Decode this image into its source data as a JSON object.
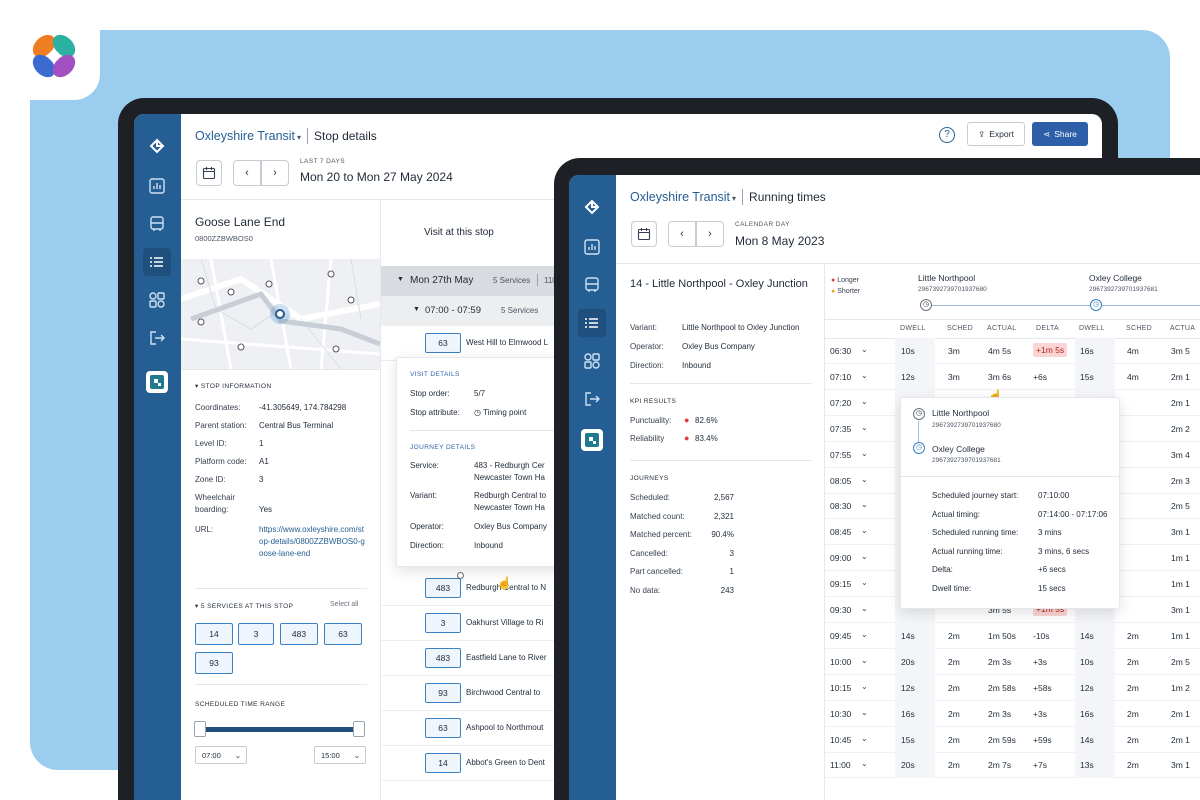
{
  "screen1": {
    "brand": "Oxleyshire Transit",
    "page_title": "Stop details",
    "export_label": "Export",
    "share_label": "Share",
    "date_caption": "LAST 7 DAYS",
    "date_range": "Mon 20 to Mon 27 May 2024",
    "stop_name": "Goose Lane End",
    "stop_code": "0800ZZBWBOS0",
    "stop_info_title": "STOP INFORMATION",
    "info": [
      {
        "k": "Coordinates:",
        "v": "-41.305649, 174.784298"
      },
      {
        "k": "Parent station:",
        "v": "Central Bus Terminal"
      },
      {
        "k": "Level ID:",
        "v": "1"
      },
      {
        "k": "Platform code:",
        "v": "A1"
      },
      {
        "k": "Zone ID:",
        "v": "3"
      },
      {
        "k": "Wheelchair boarding:",
        "v": "Yes"
      },
      {
        "k": "URL:",
        "v": "https://www.oxleyshire.com/stop-details/0800ZZBWBOS0-goose-lane-end"
      }
    ],
    "services_title": "5 SERVICES AT THIS STOP",
    "select_all": "Select all",
    "services": [
      "14",
      "3",
      "483",
      "63",
      "93"
    ],
    "time_range_title": "SCHEDULED TIME RANGE",
    "time_from": "07:00",
    "time_to": "15:00",
    "visit_tab": "Visit at this stop",
    "day_group": "Mon 27th May",
    "day_services": "5 Services",
    "day_extra": "110",
    "hour_group": "07:00 - 07:59",
    "hour_services": "5 Services",
    "journeys": [
      {
        "num": "63",
        "route": "West Hill to Elmwood L"
      },
      {
        "num": "483",
        "route": "Redburgh Central to N"
      },
      {
        "num": "3",
        "route": "Oakhurst Village to Ri"
      },
      {
        "num": "483",
        "route": "Eastfield Lane to River"
      },
      {
        "num": "93",
        "route": "Birchwood Central to"
      },
      {
        "num": "63",
        "route": "Ashpool to Northmout"
      },
      {
        "num": "14",
        "route": "Abbot's Green to Dent"
      }
    ],
    "popup": {
      "visit_title": "VISIT DETAILS",
      "stop_order_k": "Stop order:",
      "stop_order_v": "5/7",
      "stop_attr_k": "Stop attribute:",
      "stop_attr_v": "Timing point",
      "journey_title": "JOURNEY DETAILS",
      "service_k": "Service:",
      "service_v1": "483 - Redburgh Cer",
      "service_v2": "Newcaster Town Ha",
      "variant_k": "Variant:",
      "variant_v1": "Redburgh Central to",
      "variant_v2": "Newcaster Town Ha",
      "operator_k": "Operator:",
      "operator_v": "Oxley Bus Company",
      "direction_k": "Direction:",
      "direction_v": "Inbound"
    }
  },
  "screen2": {
    "brand": "Oxleyshire Transit",
    "page_title": "Running times",
    "date_caption": "CALENDAR DAY",
    "date": "Mon 8 May 2023",
    "route_title": "14 - Little Northpool - Oxley Junction",
    "meta": [
      {
        "k": "Variant:",
        "v": "Little Northpool to Oxley Junction"
      },
      {
        "k": "Operator:",
        "v": "Oxley Bus Company"
      },
      {
        "k": "Direction:",
        "v": "Inbound"
      }
    ],
    "kpi_title": "KPI RESULTS",
    "kpis": [
      {
        "k": "Punctuality:",
        "v": "82.6%"
      },
      {
        "k": "Reliability",
        "v": "83.4%"
      }
    ],
    "journeys_title": "JOURNEYS",
    "journey_stats": [
      {
        "k": "Scheduled:",
        "v": "2,567"
      },
      {
        "k": "Matched count:",
        "v": "2,321"
      },
      {
        "k": "Matched percent:",
        "v": "90.4%"
      },
      {
        "k": "Cancelled:",
        "v": "3"
      },
      {
        "k": "Part cancelled:",
        "v": "1"
      },
      {
        "k": "No data:",
        "v": "243"
      }
    ],
    "legend_longer": "Longer",
    "legend_shorter": "Shorter",
    "stop_a_name": "Little Northpool",
    "stop_a_code": "2967392739701937680",
    "stop_b_name": "Oxley College",
    "stop_b_code": "2967392739701937681",
    "columns": [
      "DWELL",
      "SCHED",
      "ACTUAL",
      "DELTA",
      "DWELL",
      "SCHED",
      "ACTUA"
    ],
    "rows": [
      {
        "time": "06:30",
        "dwell": "10s",
        "sched": "3m",
        "actual": "4m 5s",
        "delta": "+1m 5s",
        "dwell2": "16s",
        "sched2": "4m",
        "actual2": "3m 5"
      },
      {
        "time": "07:10",
        "dwell": "12s",
        "sched": "3m",
        "actual": "3m 6s",
        "delta": "+6s",
        "dwell2": "15s",
        "sched2": "4m",
        "actual2": "2m 1"
      },
      {
        "time": "07:20",
        "dwell": "",
        "sched": "",
        "actual": "",
        "delta": "",
        "dwell2": "",
        "sched2": "",
        "actual2": "2m 1"
      },
      {
        "time": "07:35",
        "dwell": "",
        "sched": "",
        "actual": "",
        "delta": "",
        "dwell2": "",
        "sched2": "",
        "actual2": "2m 2"
      },
      {
        "time": "07:55",
        "dwell": "",
        "sched": "",
        "actual": "",
        "delta": "",
        "dwell2": "",
        "sched2": "",
        "actual2": "3m 4"
      },
      {
        "time": "08:05",
        "dwell": "",
        "sched": "",
        "actual": "",
        "delta": "",
        "dwell2": "",
        "sched2": "",
        "actual2": "2m 3"
      },
      {
        "time": "08:30",
        "dwell": "",
        "sched": "",
        "actual": "",
        "delta": "",
        "dwell2": "",
        "sched2": "",
        "actual2": "2m 5"
      },
      {
        "time": "08:45",
        "dwell": "",
        "sched": "",
        "actual": "",
        "delta": "",
        "dwell2": "",
        "sched2": "",
        "actual2": "3m 1"
      },
      {
        "time": "09:00",
        "dwell": "",
        "sched": "",
        "actual": "",
        "delta": "",
        "dwell2": "",
        "sched2": "",
        "actual2": "1m 1"
      },
      {
        "time": "09:15",
        "dwell": "",
        "sched": "",
        "actual": "",
        "delta": "",
        "dwell2": "",
        "sched2": "",
        "actual2": "1m 1"
      },
      {
        "time": "09:30",
        "dwell": "",
        "sched": "",
        "actual": "3m 5s",
        "delta": "+1m 5s",
        "dwell2": "",
        "sched2": "",
        "actual2": "3m 1"
      },
      {
        "time": "09:45",
        "dwell": "14s",
        "sched": "2m",
        "actual": "1m 50s",
        "delta": "-10s",
        "dwell2": "14s",
        "sched2": "2m",
        "actual2": "1m 1"
      },
      {
        "time": "10:00",
        "dwell": "20s",
        "sched": "2m",
        "actual": "2m 3s",
        "delta": "+3s",
        "dwell2": "10s",
        "sched2": "2m",
        "actual2": "2m 5"
      },
      {
        "time": "10:15",
        "dwell": "12s",
        "sched": "2m",
        "actual": "2m 58s",
        "delta": "+58s",
        "dwell2": "12s",
        "sched2": "2m",
        "actual2": "1m 2"
      },
      {
        "time": "10:30",
        "dwell": "16s",
        "sched": "2m",
        "actual": "2m 3s",
        "delta": "+3s",
        "dwell2": "16s",
        "sched2": "2m",
        "actual2": "2m 1"
      },
      {
        "time": "10:45",
        "dwell": "15s",
        "sched": "2m",
        "actual": "2m 59s",
        "delta": "+59s",
        "dwell2": "14s",
        "sched2": "2m",
        "actual2": "2m 1"
      },
      {
        "time": "11:00",
        "dwell": "20s",
        "sched": "2m",
        "actual": "2m 7s",
        "delta": "+7s",
        "dwell2": "13s",
        "sched2": "2m",
        "actual2": "3m 1"
      }
    ],
    "popup": {
      "from_name": "Little Northpool",
      "from_code": "2967392739701937680",
      "to_name": "Oxley College",
      "to_code": "2967392739701937681",
      "fields": [
        {
          "k": "Scheduled journey start:",
          "v": "07:10:00"
        },
        {
          "k": "Actual timing:",
          "v": "07:14:00 - 07:17:06"
        },
        {
          "k": "Scheduled running time:",
          "v": "3 mins"
        },
        {
          "k": "Actual running time:",
          "v": "3 mins, 6 secs"
        },
        {
          "k": "Delta:",
          "v": "+6 secs"
        },
        {
          "k": "Dwell time:",
          "v": "15 secs"
        }
      ]
    }
  },
  "colors": {
    "sidebar": "#255e93",
    "background": "#9bcdee",
    "accent": "#2d5fa8",
    "delta_red": "#fbd5d5",
    "kpi_red": "#e23b3b"
  }
}
